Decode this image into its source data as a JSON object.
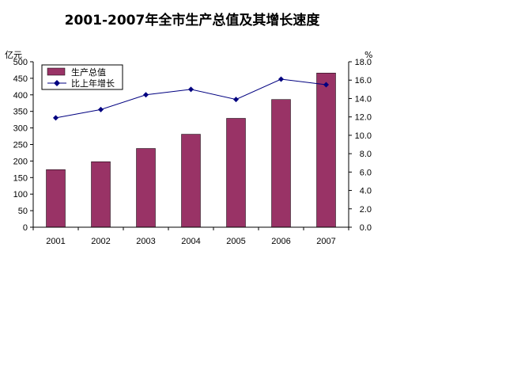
{
  "chart_data": {
    "type": "bar",
    "title": "2001-2007年全市生产总值及其增长速度",
    "categories": [
      "2001",
      "2002",
      "2003",
      "2004",
      "2005",
      "2006",
      "2007"
    ],
    "series": [
      {
        "name": "生产总值",
        "type": "bar",
        "axis": "left",
        "color": "#993366",
        "values": [
          174,
          198,
          238,
          281,
          329,
          386,
          466
        ]
      },
      {
        "name": "比上年增长",
        "type": "line",
        "axis": "right",
        "color": "#000080",
        "values": [
          11.9,
          12.8,
          14.4,
          15.0,
          13.9,
          16.1,
          15.5
        ]
      }
    ],
    "y_left": {
      "unit": "亿元",
      "ylim": [
        0,
        500
      ],
      "ticks": [
        "0",
        "50",
        "100",
        "150",
        "200",
        "250",
        "300",
        "350",
        "400",
        "450",
        "500"
      ]
    },
    "y_right": {
      "unit": "%",
      "ylim": [
        0,
        18
      ],
      "ticks": [
        "0.0",
        "2.0",
        "4.0",
        "6.0",
        "8.0",
        "10.0",
        "12.0",
        "14.0",
        "16.0",
        "18.0"
      ]
    },
    "grid": false,
    "legend_position": "top-left"
  }
}
